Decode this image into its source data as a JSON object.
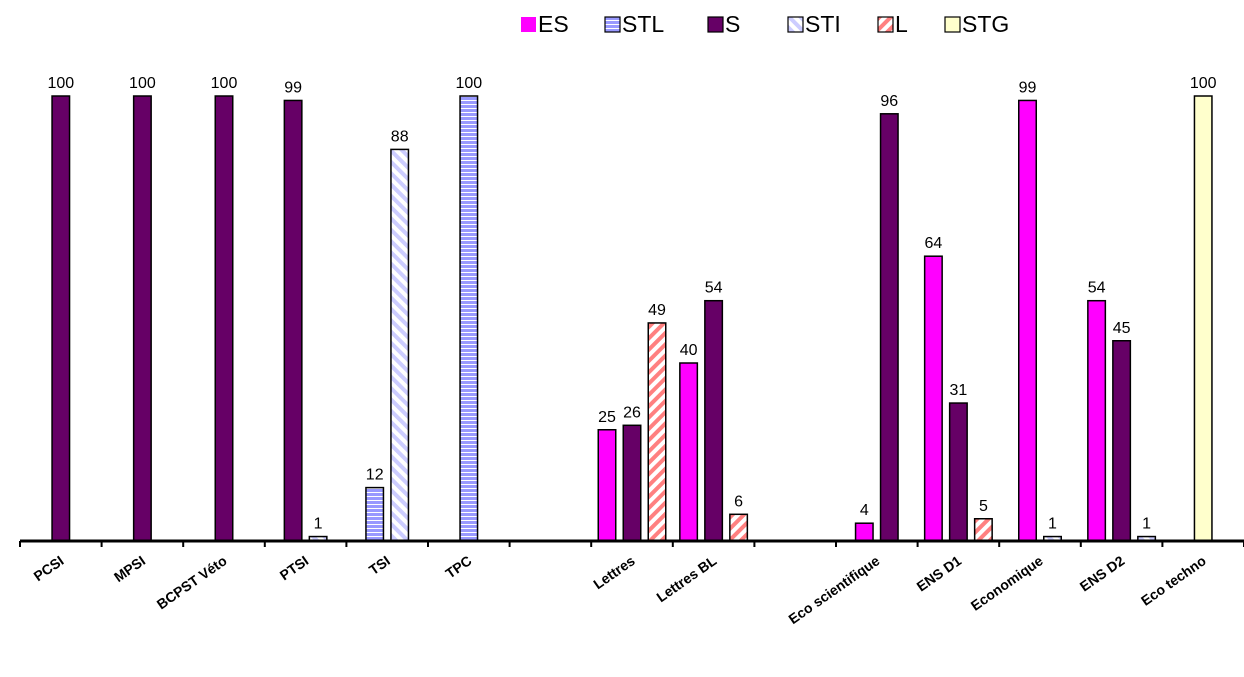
{
  "chart_data": {
    "type": "bar",
    "title": "",
    "xlabel": "",
    "ylabel": "",
    "ylim": [
      0,
      100
    ],
    "grid": false,
    "legend_position": "top-right",
    "series": [
      {
        "name": "ES",
        "color": "#ff00ff",
        "pattern": "solid"
      },
      {
        "name": "STL",
        "color": "#9999ff",
        "pattern": "horizontal-lines"
      },
      {
        "name": "S",
        "color": "#660066",
        "pattern": "solid"
      },
      {
        "name": "STI",
        "color": "#ccccff",
        "pattern": "diagonal-stripes"
      },
      {
        "name": "L",
        "color": "#ff8080",
        "pattern": "diagonal-stripes"
      },
      {
        "name": "STG",
        "color": "#ffffcc",
        "pattern": "solid"
      }
    ],
    "categories": [
      {
        "label": "PCSI",
        "bars": [
          {
            "series": "S",
            "value": 100
          }
        ]
      },
      {
        "label": "MPSI",
        "bars": [
          {
            "series": "S",
            "value": 100
          }
        ]
      },
      {
        "label": "BCPST Véto",
        "bars": [
          {
            "series": "S",
            "value": 100
          }
        ]
      },
      {
        "label": "PTSI",
        "bars": [
          {
            "series": "S",
            "value": 99
          },
          {
            "series": "STI",
            "value": 1
          }
        ]
      },
      {
        "label": "TSI",
        "bars": [
          {
            "series": "STL",
            "value": 12
          },
          {
            "series": "STI",
            "value": 88
          }
        ]
      },
      {
        "label": "TPC",
        "bars": [
          {
            "series": "STL",
            "value": 100
          }
        ]
      },
      {
        "label": "",
        "bars": []
      },
      {
        "label": "Lettres",
        "bars": [
          {
            "series": "ES",
            "value": 25
          },
          {
            "series": "S",
            "value": 26
          },
          {
            "series": "L",
            "value": 49
          }
        ]
      },
      {
        "label": "Lettres BL",
        "bars": [
          {
            "series": "ES",
            "value": 40
          },
          {
            "series": "S",
            "value": 54
          },
          {
            "series": "L",
            "value": 6
          }
        ]
      },
      {
        "label": "",
        "bars": []
      },
      {
        "label": "Eco scientifique",
        "bars": [
          {
            "series": "ES",
            "value": 4
          },
          {
            "series": "S",
            "value": 96
          }
        ]
      },
      {
        "label": "ENS D1",
        "bars": [
          {
            "series": "ES",
            "value": 64
          },
          {
            "series": "S",
            "value": 31
          },
          {
            "series": "L",
            "value": 5
          }
        ]
      },
      {
        "label": "Economique",
        "bars": [
          {
            "series": "ES",
            "value": 99
          },
          {
            "series": "STI",
            "value": 1
          }
        ]
      },
      {
        "label": "ENS D2",
        "bars": [
          {
            "series": "ES",
            "value": 54
          },
          {
            "series": "S",
            "value": 45
          },
          {
            "series": "STI",
            "value": 1
          }
        ]
      },
      {
        "label": "Eco techno",
        "bars": [
          {
            "series": "STG",
            "value": 100
          }
        ]
      }
    ]
  }
}
